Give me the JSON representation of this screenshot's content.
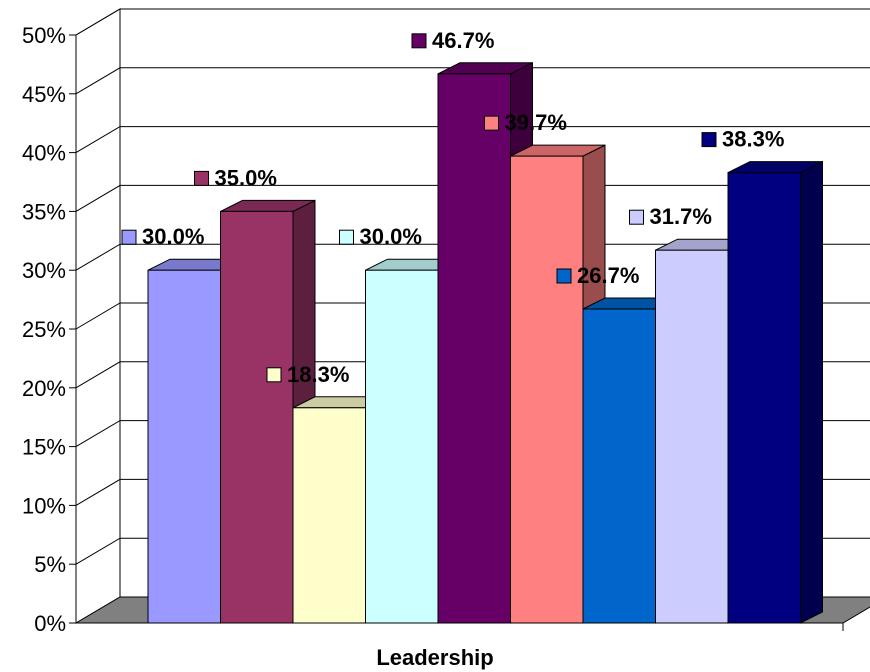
{
  "chart_data": {
    "type": "bar",
    "categories": [
      "Leadership"
    ],
    "series": [
      {
        "values": [
          30.0
        ],
        "color": "#9999FF",
        "label": "30.0%"
      },
      {
        "values": [
          35.0
        ],
        "color": "#993366",
        "label": "35.0%"
      },
      {
        "values": [
          18.3
        ],
        "color": "#FFFFCC",
        "label": "18.3%"
      },
      {
        "values": [
          30.0
        ],
        "color": "#CCFFFF",
        "label": "30.0%"
      },
      {
        "values": [
          46.7
        ],
        "color": "#660066",
        "label": "46.7%"
      },
      {
        "values": [
          39.7
        ],
        "color": "#FF8080",
        "label": "39.7%"
      },
      {
        "values": [
          26.7
        ],
        "color": "#0066CC",
        "label": "26.7%"
      },
      {
        "values": [
          31.7
        ],
        "color": "#CCCCFF",
        "label": "31.7%"
      },
      {
        "values": [
          38.3
        ],
        "color": "#000080",
        "label": "38.3%"
      }
    ],
    "ylim": [
      0,
      50
    ],
    "yticks": [
      "0%",
      "5%",
      "10%",
      "15%",
      "20%",
      "25%",
      "30%",
      "35%",
      "40%",
      "45%",
      "50%"
    ],
    "xlabel": "Leadership",
    "grid": true,
    "style": "3d-clustered-column"
  }
}
